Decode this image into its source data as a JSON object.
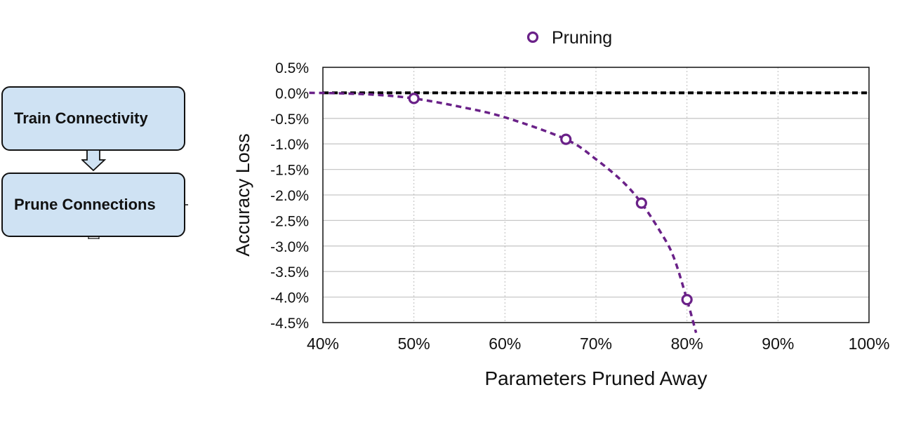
{
  "flow": {
    "steps": [
      "Train Connectivity",
      "Prune Connections"
    ],
    "box_fill": "#cfe2f3",
    "box_border": "#111111"
  },
  "chart_data": {
    "type": "line",
    "title": "",
    "xlabel": "Parameters Pruned Away",
    "ylabel": "Accuracy Loss",
    "x_ticks": [
      "40%",
      "50%",
      "60%",
      "70%",
      "80%",
      "90%",
      "100%"
    ],
    "y_ticks": [
      "0.5%",
      "0.0%",
      "-0.5%",
      "-1.0%",
      "-1.5%",
      "-2.0%",
      "-2.5%",
      "-3.0%",
      "-3.5%",
      "-4.0%",
      "-4.5%"
    ],
    "xlim": [
      40,
      100
    ],
    "ylim": [
      -4.5,
      0.5
    ],
    "grid": true,
    "legend_position": "top-center",
    "series": [
      {
        "name": "Pruning",
        "color": "#6a2188",
        "marker": "hollow-circle",
        "line": "dashed",
        "points": [
          {
            "x": 50,
            "y": -0.11
          },
          {
            "x": 66.7,
            "y": -0.91
          },
          {
            "x": 75,
            "y": -2.16
          },
          {
            "x": 80,
            "y": -4.05
          }
        ],
        "trend": [
          {
            "x": 38.5,
            "y": 0.0
          },
          {
            "x": 42,
            "y": -0.01
          },
          {
            "x": 46,
            "y": -0.04
          },
          {
            "x": 50,
            "y": -0.11
          },
          {
            "x": 55,
            "y": -0.27
          },
          {
            "x": 60,
            "y": -0.48
          },
          {
            "x": 66.7,
            "y": -0.91
          },
          {
            "x": 70,
            "y": -1.3
          },
          {
            "x": 73,
            "y": -1.75
          },
          {
            "x": 75,
            "y": -2.16
          },
          {
            "x": 77,
            "y": -2.7
          },
          {
            "x": 78.5,
            "y": -3.2
          },
          {
            "x": 80,
            "y": -4.05
          },
          {
            "x": 81,
            "y": -4.7
          }
        ]
      },
      {
        "name": "",
        "color": "#000000",
        "line": "dashed-bold",
        "points": [
          {
            "x": 40,
            "y": 0.0
          },
          {
            "x": 100,
            "y": 0.0
          }
        ]
      }
    ]
  }
}
